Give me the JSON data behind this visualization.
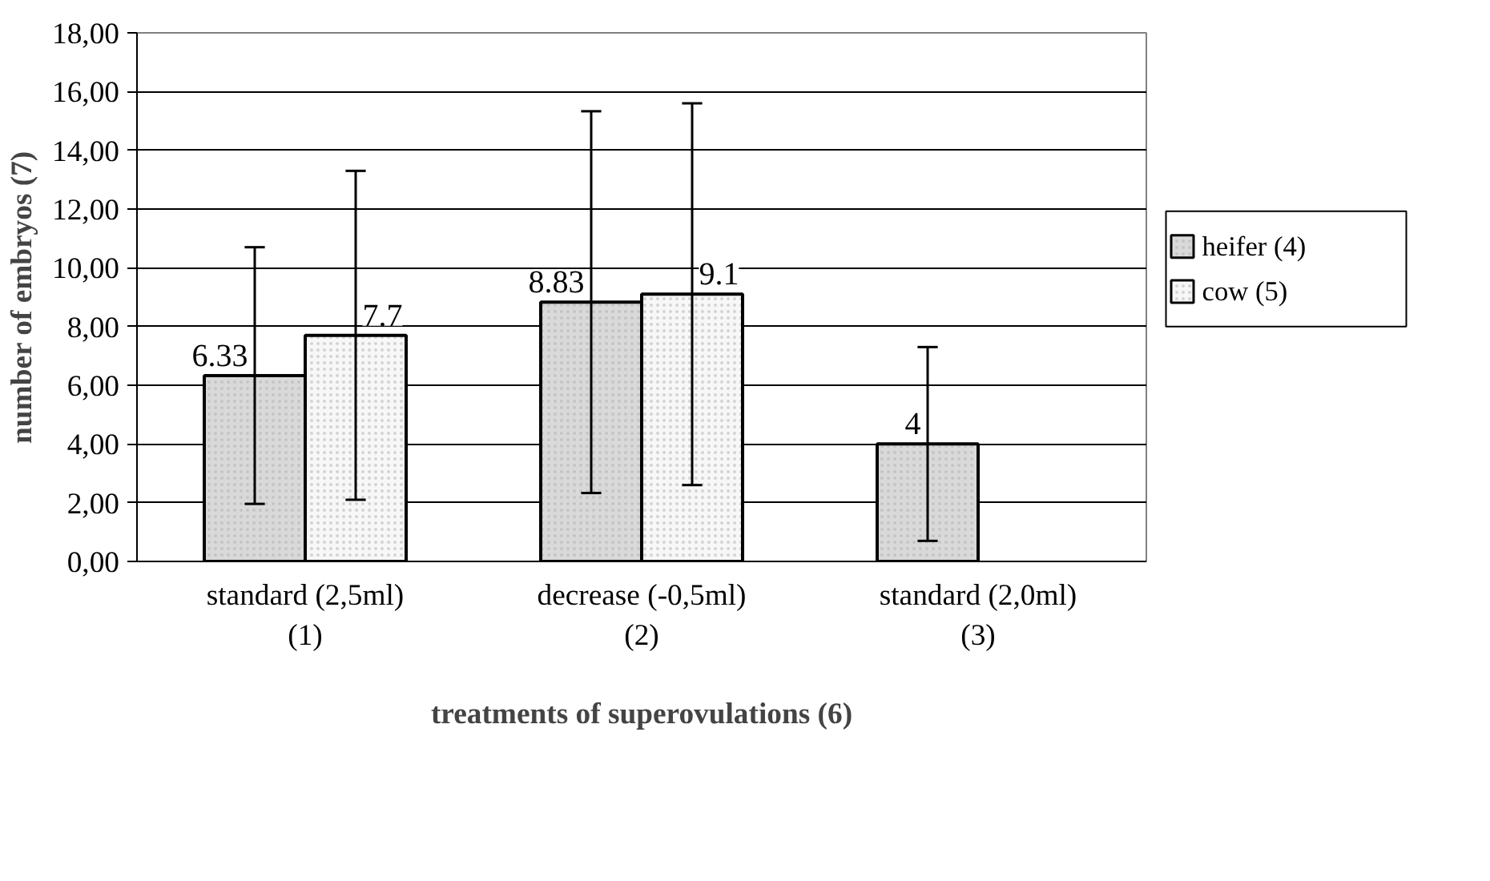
{
  "chart_data": {
    "type": "bar",
    "xlabel": "treatments of superovulations (6)",
    "ylabel": "number of embryos (7)",
    "categories": [
      "standard (2,5ml)\n(1)",
      "decrease (-0,5ml)\n(2)",
      "standard (2,0ml)\n(3)"
    ],
    "series": [
      {
        "name": "heifer (4)",
        "color": "#d9d9d9",
        "values": [
          6.33,
          8.83,
          4
        ],
        "errors": [
          4.37,
          6.5,
          3.3
        ]
      },
      {
        "name": "cow (5)",
        "color": "#f7f7f7",
        "values": [
          7.7,
          9.1,
          null
        ],
        "errors": [
          5.6,
          6.5,
          null
        ]
      }
    ],
    "ylim": [
      0,
      18
    ],
    "yticks": [
      {
        "value": 0,
        "label": "0,00"
      },
      {
        "value": 2,
        "label": "2,00"
      },
      {
        "value": 4,
        "label": "4,00"
      },
      {
        "value": 6,
        "label": "6,00"
      },
      {
        "value": 8,
        "label": "8,00"
      },
      {
        "value": 10,
        "label": "10,00"
      },
      {
        "value": 12,
        "label": "12,00"
      },
      {
        "value": 14,
        "label": "14,00"
      },
      {
        "value": 16,
        "label": "16,00"
      },
      {
        "value": 18,
        "label": "18,00"
      }
    ],
    "grid": "y",
    "legend": "right",
    "data_labels": true
  }
}
